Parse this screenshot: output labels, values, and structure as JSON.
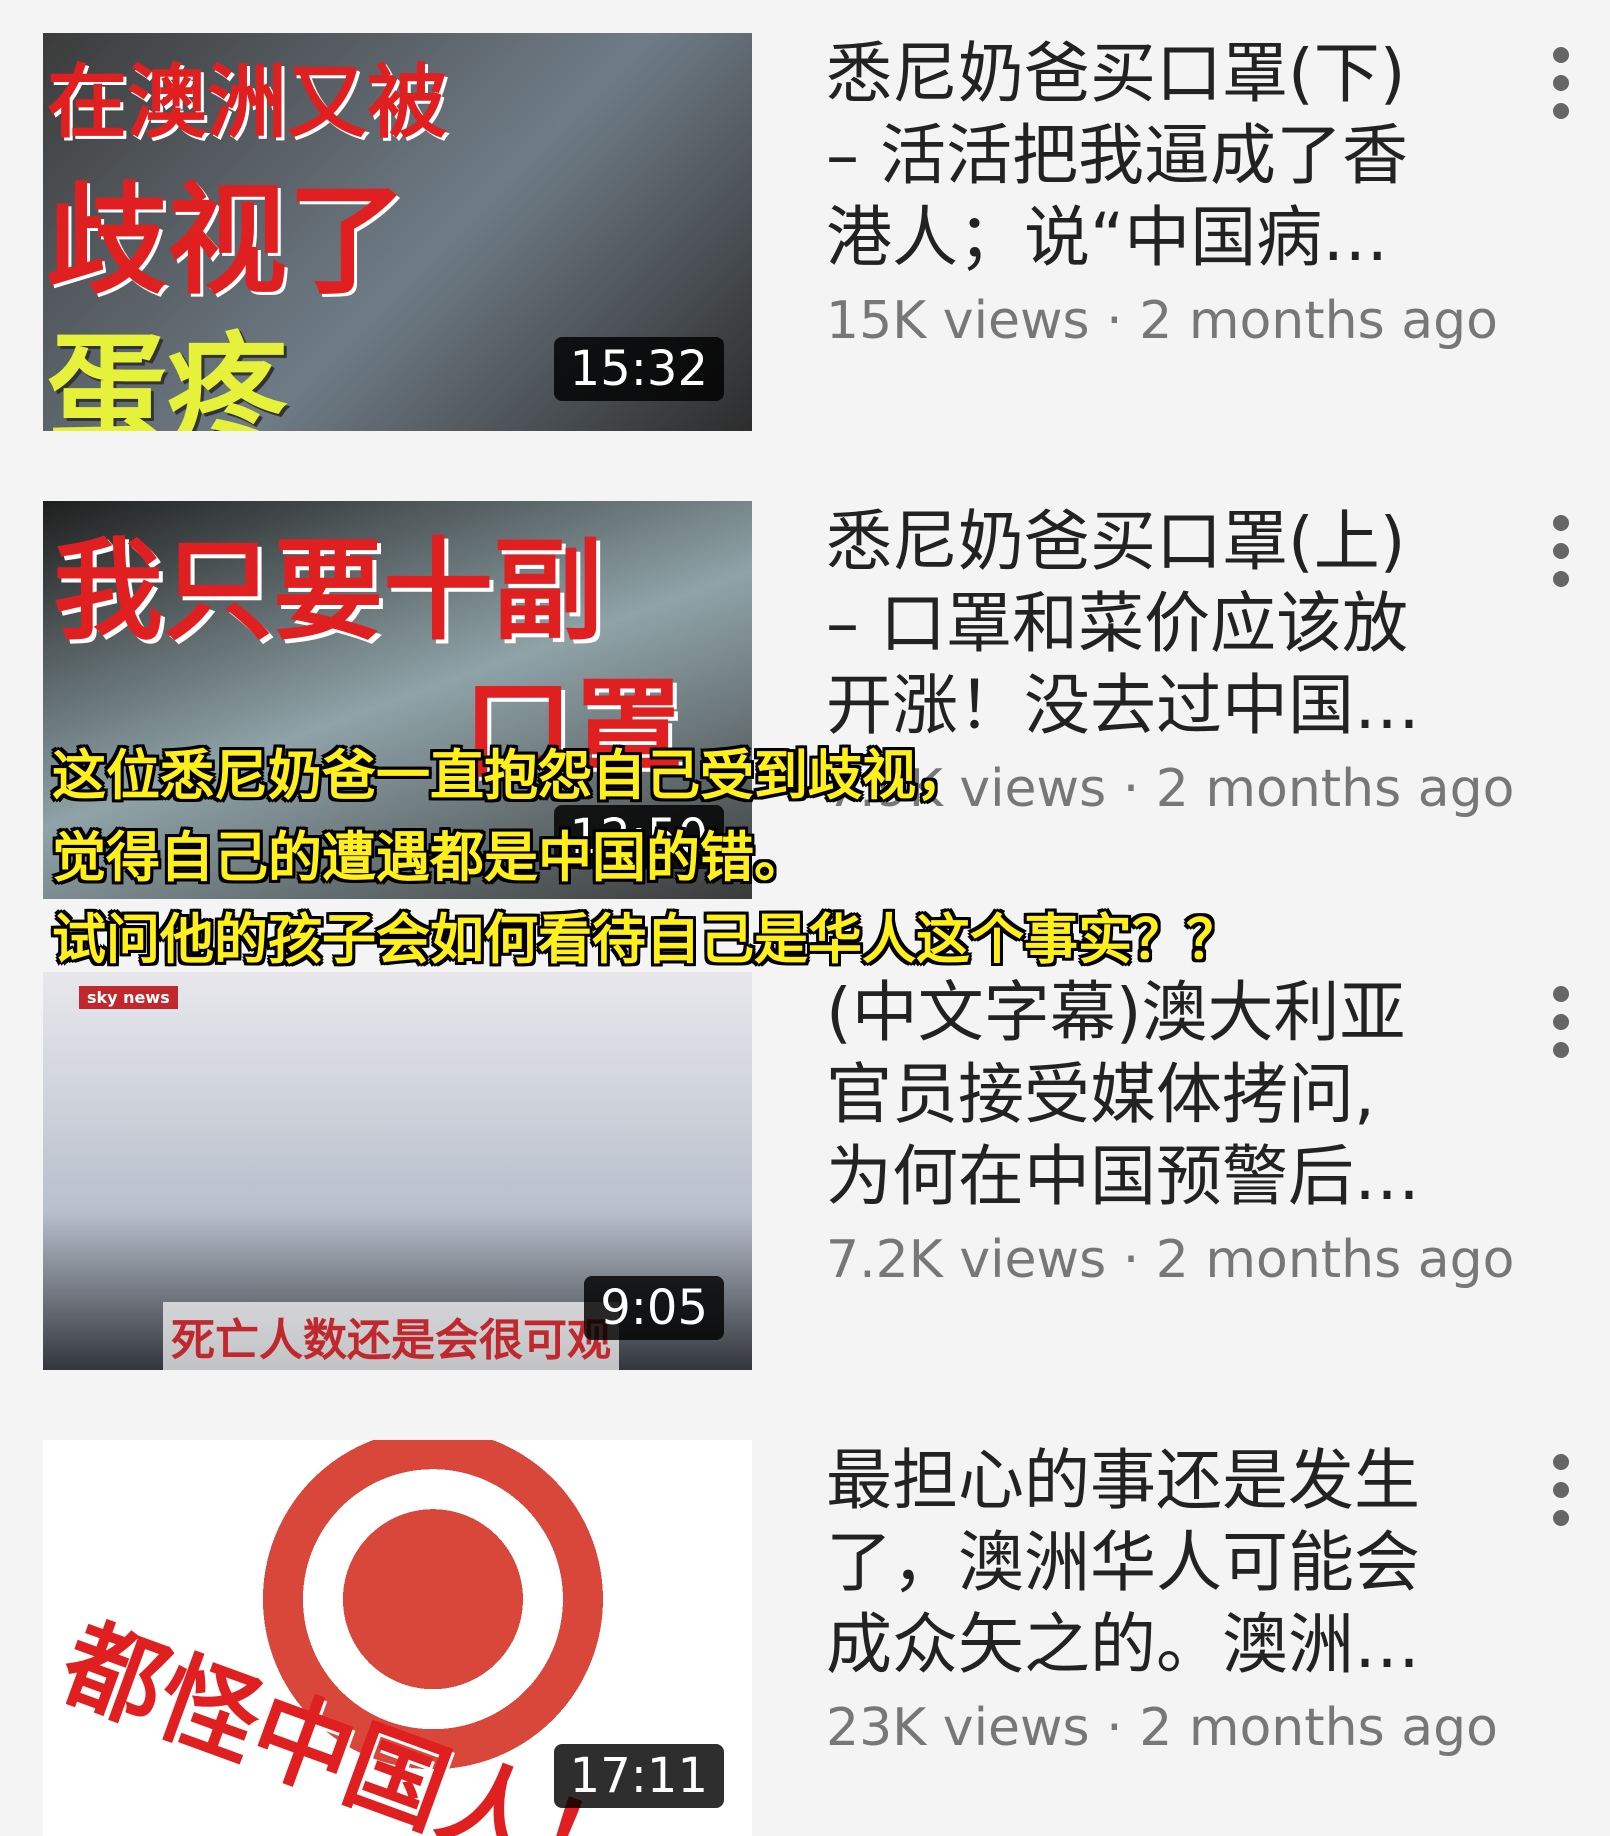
{
  "videos": [
    {
      "thumbnail_text": [
        "在澳洲又被",
        "歧视了",
        "蛋疼"
      ],
      "duration": "15:32",
      "title_lines": [
        "悉尼奶爸买口罩(下)",
        "– 活活把我逼成了香",
        "港人；说“中国病…"
      ],
      "meta": "15K views · 2 months ago"
    },
    {
      "thumbnail_text": [
        "我只要十副",
        "口罩"
      ],
      "duration": "12:50",
      "title_lines": [
        "悉尼奶爸买口罩(上)",
        "– 口罩和菜价应该放",
        "开涨！没去过中国…"
      ],
      "meta": "7.9K views · 2 months ago"
    },
    {
      "thumbnail_text": [
        "sky news",
        "死亡人数还是会很可观"
      ],
      "duration": "9:05",
      "title_lines": [
        "(中文字幕)澳大利亚",
        "官员接受媒体拷问,",
        "为何在中国预警后…"
      ],
      "meta": "7.2K views · 2 months ago"
    },
    {
      "thumbnail_text": [
        "都怪中国人！"
      ],
      "duration": "17:11",
      "title_lines": [
        "最担心的事还是发生",
        "了，澳洲华人可能会",
        "成众矢之的。澳洲…"
      ],
      "meta": "23K views · 2 months ago"
    }
  ],
  "overlay_caption": [
    "这位悉尼奶爸一直抱怨自己受到歧视，",
    "觉得自己的遭遇都是中国的错。",
    "试问他的孩子会如何看待自己是华人这个事实？？"
  ]
}
